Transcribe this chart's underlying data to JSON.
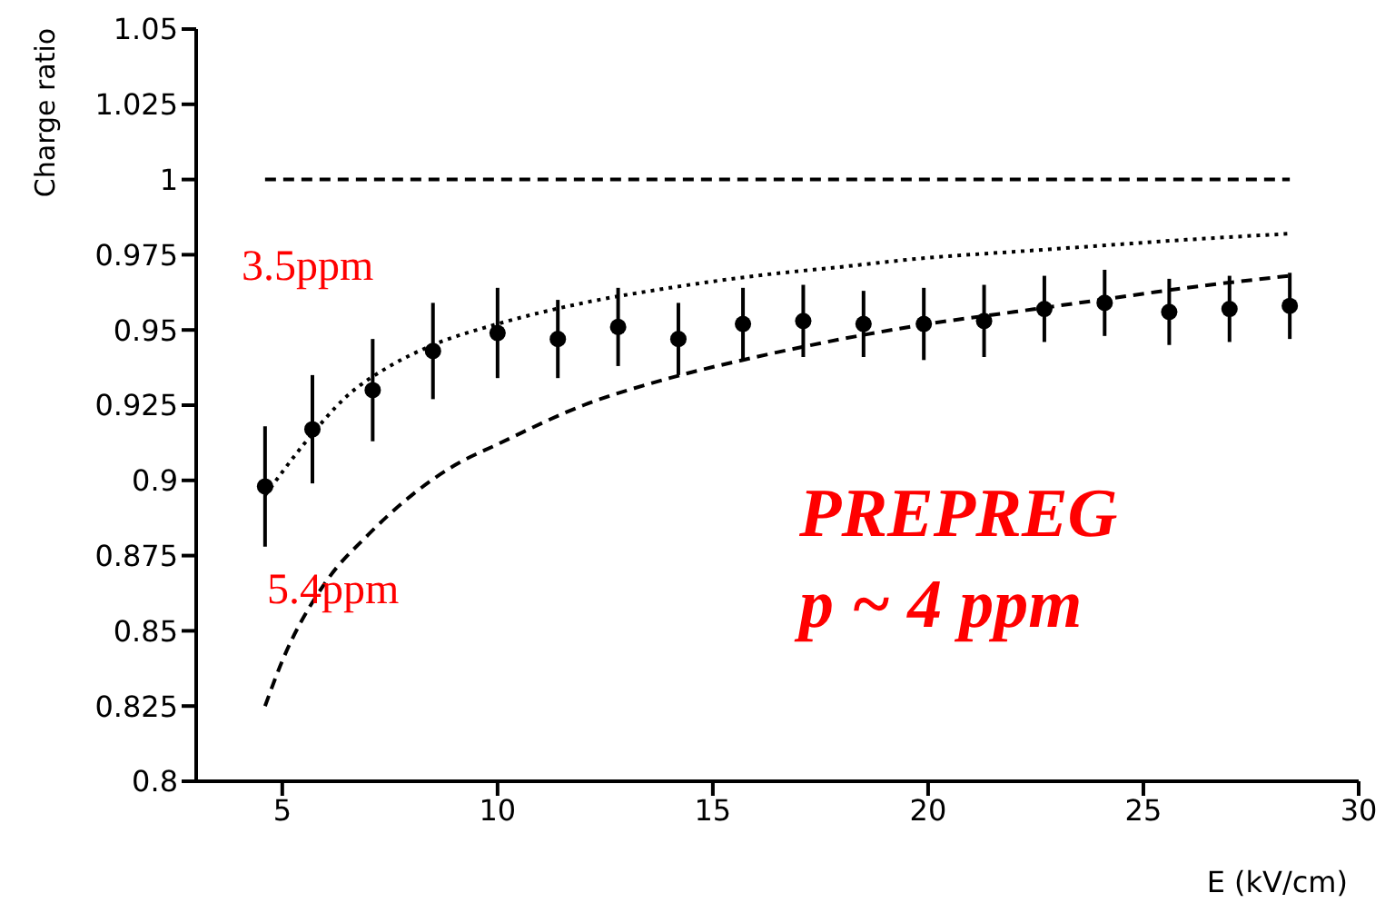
{
  "chart_data": {
    "type": "scatter",
    "ylabel": "Charge ratio",
    "xlabel": "E (kV/cm)",
    "xlim": [
      3,
      30
    ],
    "xticks": [
      5,
      10,
      15,
      20,
      25,
      30
    ],
    "ylim": [
      0.8,
      1.05
    ],
    "yticks": [
      0.8,
      0.825,
      0.85,
      0.875,
      0.9,
      0.925,
      0.95,
      0.975,
      1,
      1.025,
      1.05
    ],
    "grid": false,
    "series": [
      {
        "color": "#000000",
        "marker": "circle",
        "x": [
          4.6,
          5.7,
          7.1,
          8.5,
          10.0,
          11.4,
          12.8,
          14.2,
          15.7,
          17.1,
          18.5,
          19.9,
          21.3,
          22.7,
          24.1,
          25.6,
          27.0,
          28.4
        ],
        "values": [
          0.898,
          0.917,
          0.93,
          0.943,
          0.949,
          0.947,
          0.951,
          0.947,
          0.952,
          0.953,
          0.952,
          0.952,
          0.953,
          0.957,
          0.959,
          0.956,
          0.957,
          0.958
        ],
        "errors": [
          0.02,
          0.018,
          0.017,
          0.016,
          0.015,
          0.013,
          0.013,
          0.012,
          0.012,
          0.012,
          0.011,
          0.012,
          0.012,
          0.011,
          0.011,
          0.011,
          0.011,
          0.011
        ]
      },
      {
        "type": "line",
        "color": "#000000",
        "line_style": "dashed",
        "marker": "none",
        "x": [
          4.6,
          28.4
        ],
        "values": [
          1,
          1
        ]
      },
      {
        "type": "line",
        "color": "#000000",
        "line_style": "dotted",
        "marker": "none",
        "x": [
          4.6,
          5.5,
          6.5,
          7.5,
          8.5,
          10,
          12,
          14,
          16,
          18,
          20,
          22,
          24,
          26,
          28.4
        ],
        "values": [
          0.895,
          0.912,
          0.928,
          0.938,
          0.945,
          0.952,
          0.959,
          0.964,
          0.968,
          0.971,
          0.974,
          0.976,
          0.978,
          0.98,
          0.982
        ]
      },
      {
        "type": "line",
        "color": "#000000",
        "line_style": "dashed",
        "marker": "none",
        "x": [
          4.6,
          5,
          6,
          7,
          8,
          9,
          10,
          12,
          14,
          16,
          18,
          20,
          22,
          24,
          26,
          28.4
        ],
        "values": [
          0.825,
          0.84,
          0.866,
          0.882,
          0.895,
          0.905,
          0.912,
          0.925,
          0.934,
          0.941,
          0.947,
          0.952,
          0.956,
          0.96,
          0.964,
          0.968
        ]
      }
    ],
    "annotations": [
      "3.5ppm",
      "5.4ppm",
      "PREPREG",
      "p ~ 4 ppm"
    ]
  }
}
